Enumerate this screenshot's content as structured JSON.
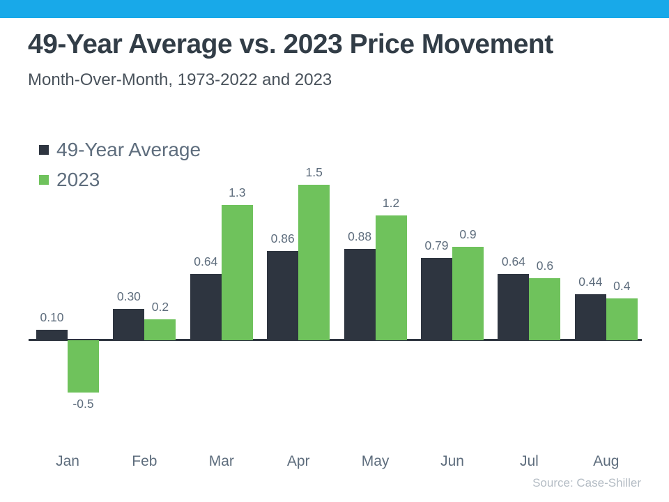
{
  "accent_bar_color": "#18a9e9",
  "header": {
    "title": "49-Year Average vs. 2023 Price Movement",
    "subtitle": "Month-Over-Month, 1973-2022 and 2023"
  },
  "source": "Source: Case-Shiller",
  "colors": {
    "dark_bar": "#2e3540",
    "green_bar": "#6fc25c",
    "axis": "#2e3540",
    "label_text": "#5e6d7d"
  },
  "chart_data": {
    "type": "bar",
    "title": "49-Year Average vs. 2023 Price Movement",
    "subtitle": "Month-Over-Month, 1973-2022 and 2023",
    "categories": [
      "Jan",
      "Feb",
      "Mar",
      "Apr",
      "May",
      "Jun",
      "Jul",
      "Aug"
    ],
    "series": [
      {
        "name": "49-Year Average",
        "color": "#2e3540",
        "values": [
          0.1,
          0.3,
          0.64,
          0.86,
          0.88,
          0.79,
          0.64,
          0.44
        ],
        "labels": [
          "0.10",
          "0.30",
          "0.64",
          "0.86",
          "0.88",
          "0.79",
          "0.64",
          "0.44"
        ]
      },
      {
        "name": "2023",
        "color": "#6fc25c",
        "values": [
          -0.5,
          0.2,
          1.3,
          1.5,
          1.2,
          0.9,
          0.6,
          0.4
        ],
        "labels": [
          "-0.5",
          "0.2",
          "1.3",
          "1.5",
          "1.2",
          "0.9",
          "0.6",
          "0.4"
        ]
      }
    ],
    "xlabel": "",
    "ylabel": "",
    "ylim": [
      -0.6,
      1.6
    ],
    "grid": false,
    "legend_position": "top-left",
    "data_labels": true
  }
}
